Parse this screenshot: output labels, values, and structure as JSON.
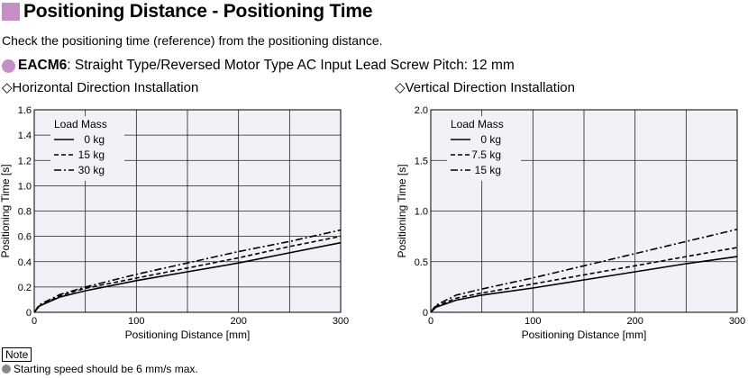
{
  "header": {
    "title": "Positioning Distance - Positioning Time",
    "subtitle": "Check the positioning time (reference) from the positioning distance.",
    "model_name": "EACM6",
    "model_desc": ": Straight Type/Reversed Motor Type AC Input Lead Screw Pitch: 12 mm",
    "accent_color": "#c58fc6"
  },
  "note": {
    "label": "Note",
    "text": "Starting speed should be 6 mm/s max."
  },
  "chart_data": [
    {
      "type": "line",
      "heading": "◇Horizontal Direction Installation",
      "xlabel": "Positioning Distance [mm]",
      "ylabel": "Positioning Time [s]",
      "xlim": [
        0,
        300
      ],
      "ylim": [
        0,
        1.6
      ],
      "xticks": [
        0,
        100,
        200,
        300
      ],
      "yticks": [
        0,
        0.2,
        0.4,
        0.6,
        0.8,
        1.0,
        1.2,
        1.4,
        1.6
      ],
      "ytick_labels": [
        "0",
        "0.2",
        "0.4",
        "0.6",
        "0.8",
        "1.0",
        "1.2",
        "1.4",
        "1.6"
      ],
      "grid": true,
      "legend_title": "Load Mass",
      "legend_position": "top-left",
      "x": [
        0,
        5,
        25,
        50,
        100,
        150,
        200,
        250,
        300
      ],
      "series": [
        {
          "name": "0 kg",
          "dash": "solid",
          "values": [
            0.0,
            0.05,
            0.12,
            0.17,
            0.25,
            0.32,
            0.39,
            0.47,
            0.55
          ]
        },
        {
          "name": "15 kg",
          "dash": "dashed",
          "values": [
            0.0,
            0.05,
            0.13,
            0.19,
            0.27,
            0.35,
            0.43,
            0.52,
            0.6
          ]
        },
        {
          "name": "30 kg",
          "dash": "dashdot",
          "values": [
            0.0,
            0.06,
            0.14,
            0.2,
            0.3,
            0.39,
            0.48,
            0.56,
            0.65
          ]
        }
      ]
    },
    {
      "type": "line",
      "heading": "◇Vertical Direction Installation",
      "xlabel": "Positioning Distance [mm]",
      "ylabel": "Positioning Time [s]",
      "xlim": [
        0,
        300
      ],
      "ylim": [
        0,
        2.0
      ],
      "xticks": [
        0,
        100,
        200,
        300
      ],
      "yticks": [
        0,
        0.5,
        1.0,
        1.5,
        2.0
      ],
      "ytick_labels": [
        "0",
        "0.5",
        "1.0",
        "1.5",
        "2.0"
      ],
      "grid": true,
      "legend_title": "Load Mass",
      "legend_position": "top-left",
      "x": [
        0,
        5,
        25,
        50,
        100,
        150,
        200,
        250,
        300
      ],
      "series": [
        {
          "name": "0 kg",
          "dash": "solid",
          "values": [
            0.0,
            0.05,
            0.12,
            0.17,
            0.24,
            0.32,
            0.4,
            0.48,
            0.55
          ]
        },
        {
          "name": "7.5 kg",
          "dash": "dashed",
          "values": [
            0.0,
            0.06,
            0.14,
            0.19,
            0.28,
            0.37,
            0.46,
            0.55,
            0.64
          ]
        },
        {
          "name": "15 kg",
          "dash": "dashdot",
          "values": [
            0.0,
            0.07,
            0.17,
            0.23,
            0.34,
            0.46,
            0.58,
            0.7,
            0.82
          ]
        }
      ]
    }
  ]
}
